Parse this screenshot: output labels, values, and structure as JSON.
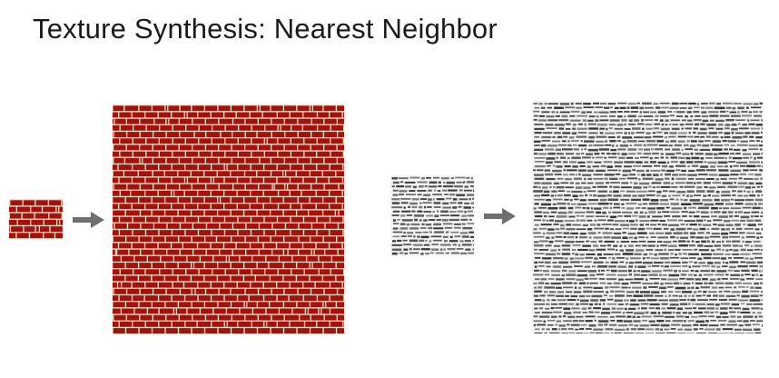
{
  "slide": {
    "title": "Texture Synthesis: Nearest Neighbor"
  },
  "examples": [
    {
      "name": "brick",
      "colors": {
        "brick": "#a4120c",
        "mortar": "#e9e3cf"
      }
    },
    {
      "name": "text",
      "colors": {
        "background": "#f4f4f4",
        "ink": "#2a2a2a"
      }
    }
  ],
  "colors": {
    "arrow": "#6f6f6f",
    "title": "#1a1a1a"
  },
  "icons": {
    "arrow": "right-arrow-icon"
  }
}
